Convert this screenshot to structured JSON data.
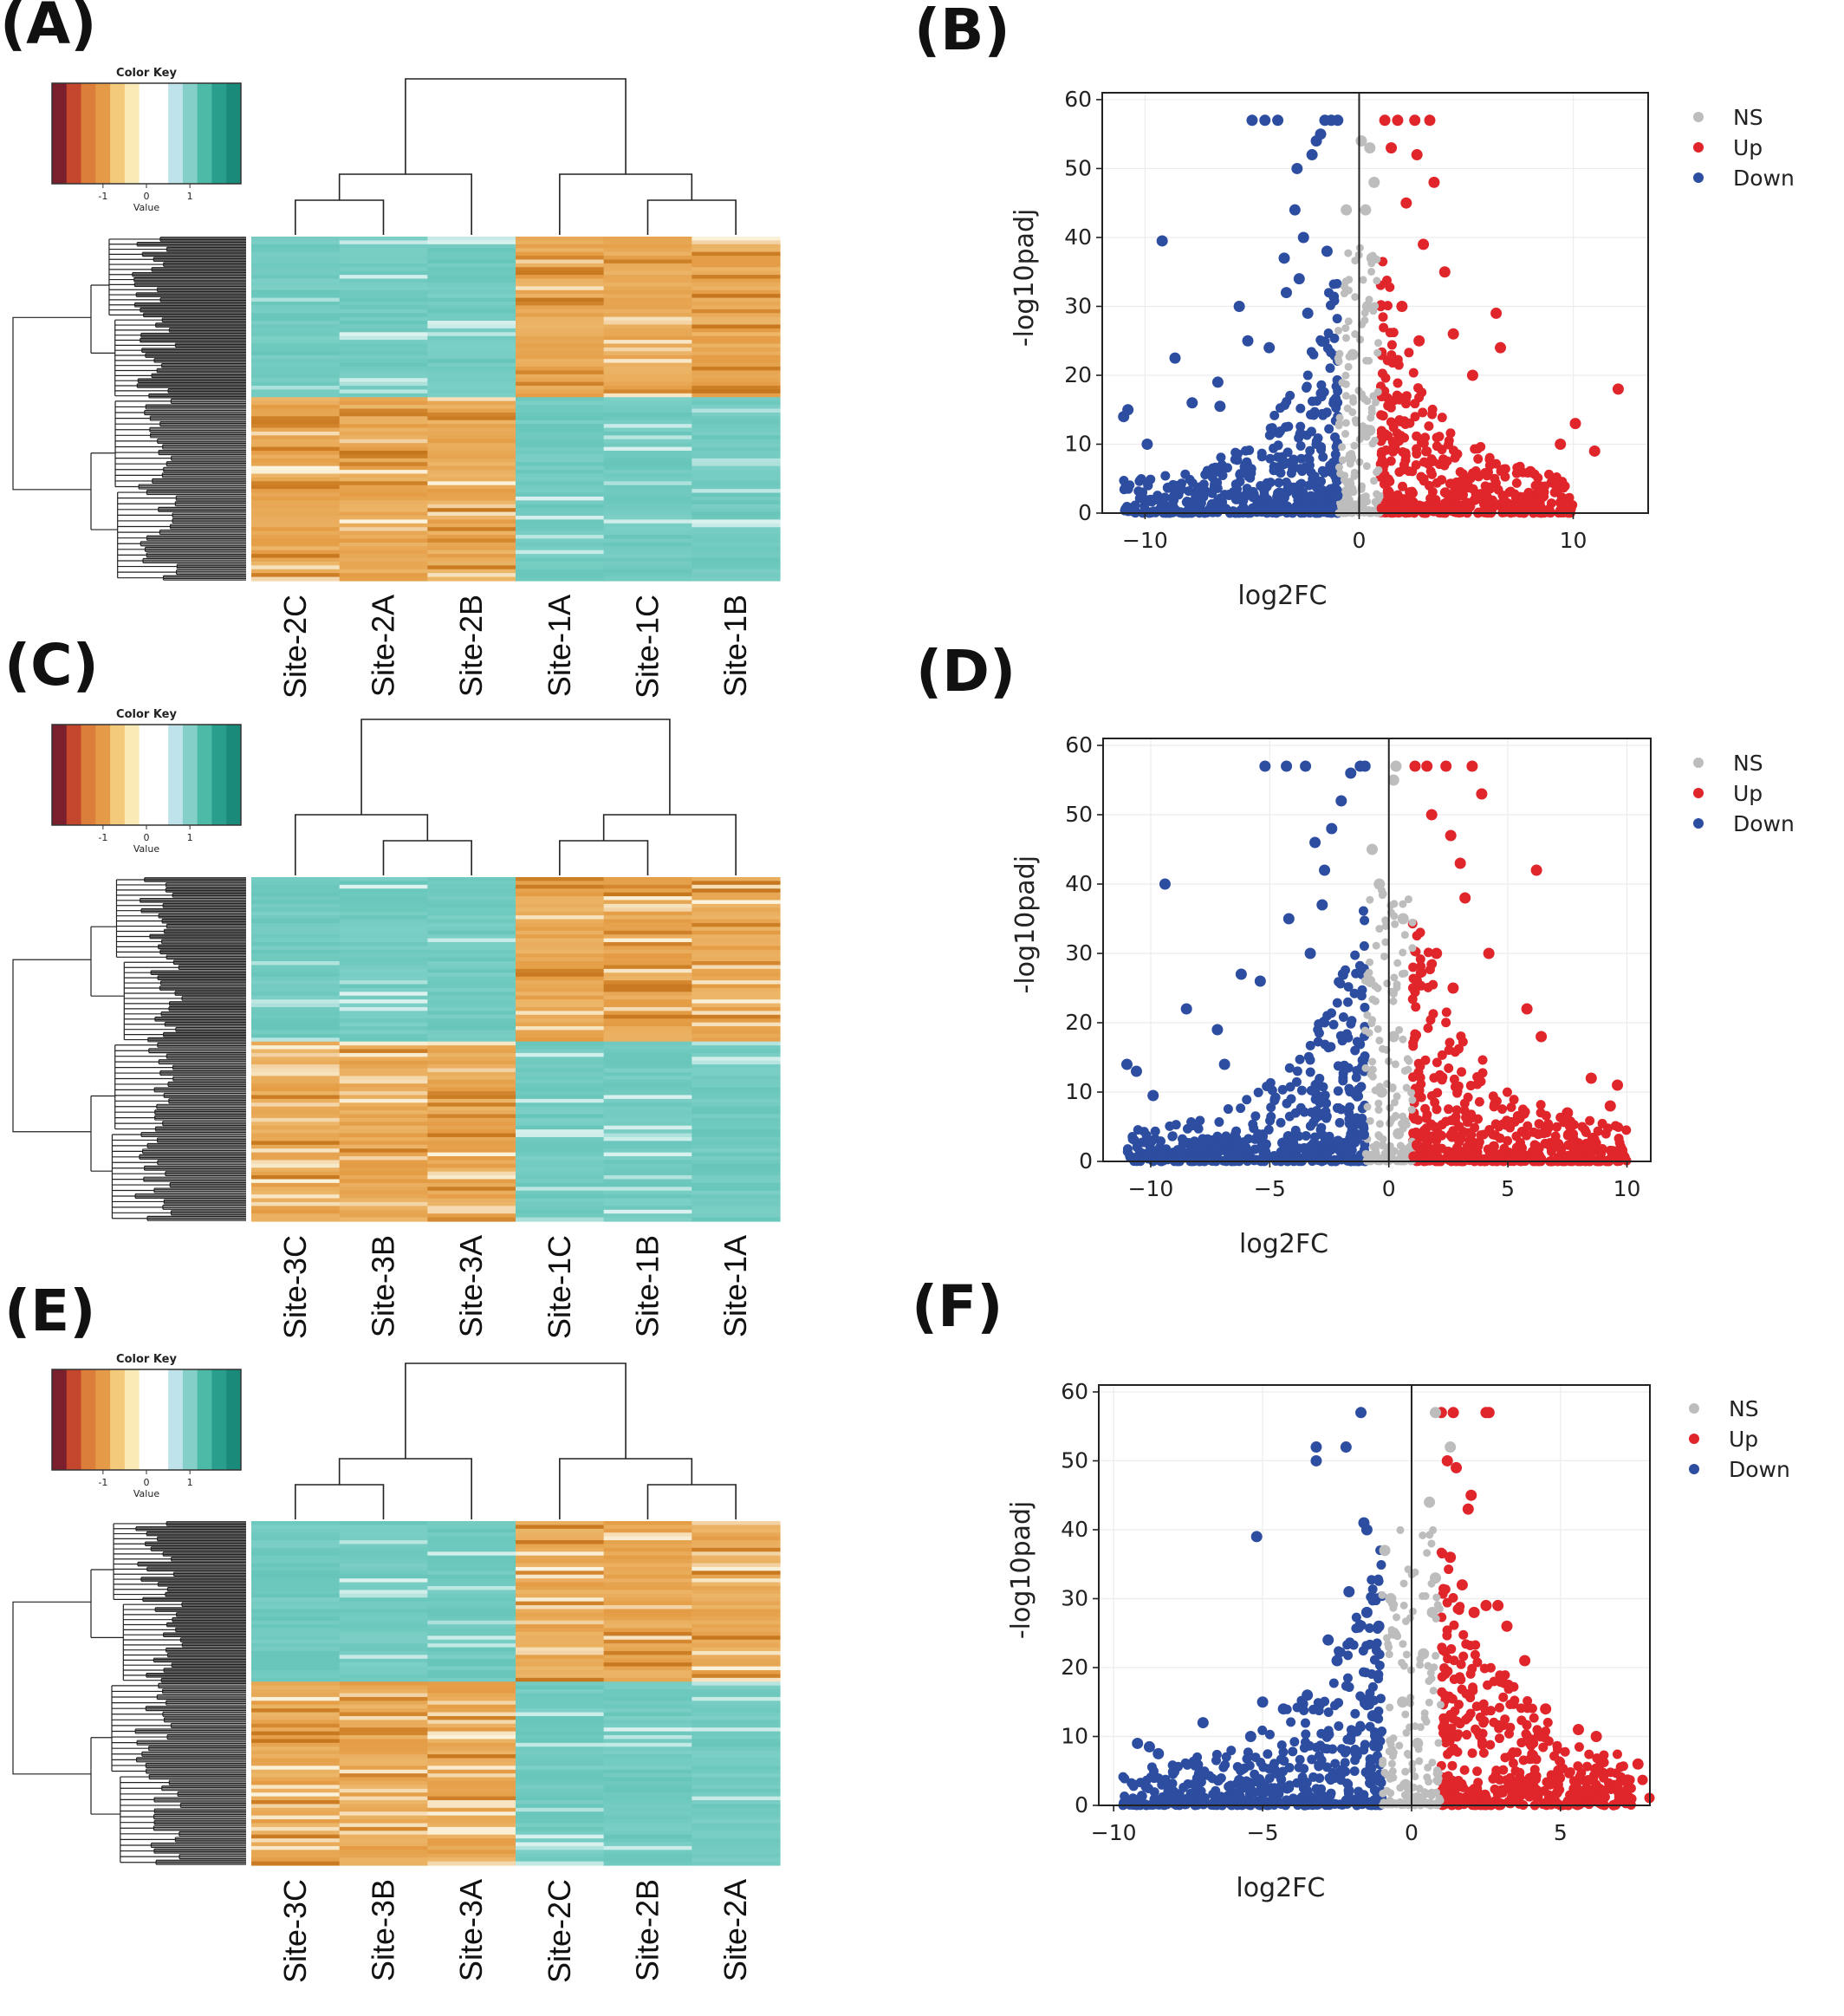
{
  "colors": {
    "up": "#e0252b",
    "down": "#2d4da0",
    "ns": "#bdbdbd",
    "heat_low": "#7ccfc6",
    "heat_mid": "#fbf3dc",
    "heat_high": "#e49b43",
    "heat_max": "#c6761d"
  },
  "color_key": {
    "title": "Color Key",
    "xlabel": "Value",
    "ticks": [
      "-1",
      "0",
      "1"
    ],
    "bands": [
      "#7a1f2b",
      "#c4462c",
      "#db7e3a",
      "#e59a48",
      "#f3c97c",
      "#faeab5",
      "#ffffff",
      "#ffffff",
      "#bfe3ea",
      "#84cfc7",
      "#4dbaa8",
      "#2a9e8c",
      "#1a8a7a"
    ]
  },
  "panels": [
    {
      "id": "A",
      "label": "(A)"
    },
    {
      "id": "B",
      "label": "(B)"
    },
    {
      "id": "C",
      "label": "(C)"
    },
    {
      "id": "D",
      "label": "(D)"
    },
    {
      "id": "E",
      "label": "(E)"
    },
    {
      "id": "F",
      "label": "(F)"
    }
  ],
  "chart_data": [
    {
      "panel": "A",
      "type": "heatmap",
      "columns": [
        "Site-2C",
        "Site-2A",
        "Site-2B",
        "Site-1A",
        "Site-1C",
        "Site-1B"
      ],
      "row_blocks": [
        {
          "fraction": 0.47,
          "pattern": [
            "low",
            "low",
            "low",
            "high",
            "high",
            "high"
          ]
        },
        {
          "fraction": 0.53,
          "pattern": [
            "high",
            "high",
            "high",
            "low",
            "low",
            "low"
          ]
        }
      ],
      "column_tree": [
        [
          0,
          1
        ],
        [
          "01",
          2
        ],
        [
          4,
          5
        ],
        [
          3,
          "45"
        ],
        [
          "012",
          "345"
        ]
      ],
      "color_key": true
    },
    {
      "panel": "B",
      "type": "scatter",
      "xlabel": "log2FC",
      "ylabel": "-log10padj",
      "xlim": [
        -12,
        13.5
      ],
      "ylim": [
        0,
        61
      ],
      "xticks": [
        -10,
        0,
        10
      ],
      "yticks": [
        0,
        10,
        20,
        30,
        40,
        50,
        60
      ],
      "legend": [
        "NS",
        "Up",
        "Down"
      ],
      "legend_position": "right",
      "grid": true,
      "series": [
        {
          "name": "Down",
          "points": [
            [
              -11,
              14
            ],
            [
              -10.8,
              15
            ],
            [
              -9.9,
              10
            ],
            [
              -9.2,
              39.5
            ],
            [
              -8.6,
              22.5
            ],
            [
              -7.8,
              16
            ],
            [
              -6.6,
              19
            ],
            [
              -6.5,
              15.5
            ],
            [
              -5.6,
              30
            ],
            [
              -5.2,
              25
            ],
            [
              -5,
              57
            ],
            [
              -4.4,
              57
            ],
            [
              -3.8,
              57
            ],
            [
              -3.5,
              37
            ],
            [
              -3,
              44
            ],
            [
              -2.9,
              50
            ],
            [
              -2.6,
              40
            ],
            [
              -2.2,
              52
            ],
            [
              -2,
              54
            ],
            [
              -1.8,
              55
            ],
            [
              -1.6,
              57
            ],
            [
              -1.3,
              57
            ],
            [
              -1,
              57
            ],
            [
              -4.2,
              24
            ],
            [
              -3.4,
              32
            ],
            [
              -2.8,
              34
            ],
            [
              -2.4,
              29
            ],
            [
              -1.5,
              38
            ]
          ]
        },
        {
          "name": "Up",
          "points": [
            [
              1.2,
              57
            ],
            [
              1.8,
              57
            ],
            [
              2.6,
              57
            ],
            [
              3.3,
              57
            ],
            [
              1.5,
              53
            ],
            [
              2.7,
              52
            ],
            [
              3.5,
              48
            ],
            [
              2.2,
              45
            ],
            [
              3,
              39
            ],
            [
              4,
              35
            ],
            [
              6.4,
              29
            ],
            [
              6.6,
              24
            ],
            [
              4.4,
              26
            ],
            [
              5.3,
              20
            ],
            [
              10.1,
              13
            ],
            [
              12.1,
              18
            ],
            [
              11,
              9
            ],
            [
              9.4,
              10
            ],
            [
              8,
              6
            ],
            [
              2,
              30
            ],
            [
              2.8,
              25
            ]
          ]
        },
        {
          "name": "NS",
          "points": [
            [
              0.1,
              54
            ],
            [
              0.5,
              53
            ],
            [
              0.7,
              48
            ],
            [
              0.3,
              44
            ],
            [
              -0.6,
              44
            ],
            [
              0.6,
              37
            ],
            [
              0.4,
              30
            ],
            [
              -0.3,
              23
            ],
            [
              0.5,
              12
            ],
            [
              -0.4,
              8
            ],
            [
              0.2,
              2
            ],
            [
              -0.2,
              1
            ]
          ]
        }
      ]
    },
    {
      "panel": "C",
      "type": "heatmap",
      "columns": [
        "Site-3C",
        "Site-3B",
        "Site-3A",
        "Site-1C",
        "Site-1B",
        "Site-1A"
      ],
      "row_blocks": [
        {
          "fraction": 0.48,
          "pattern": [
            "low",
            "low",
            "low",
            "high",
            "high",
            "high"
          ]
        },
        {
          "fraction": 0.52,
          "pattern": [
            "high",
            "high",
            "high",
            "low",
            "low",
            "low"
          ]
        }
      ],
      "column_tree": [
        [
          1,
          2
        ],
        [
          0,
          "12"
        ],
        [
          3,
          4
        ],
        [
          "34",
          5
        ],
        [
          "012",
          "345"
        ]
      ],
      "color_key": true
    },
    {
      "panel": "D",
      "type": "scatter",
      "xlabel": "log2FC",
      "ylabel": "-log10padj",
      "xlim": [
        -12,
        11
      ],
      "ylim": [
        0,
        61
      ],
      "xticks": [
        -10,
        -5,
        0,
        5,
        10
      ],
      "yticks": [
        0,
        10,
        20,
        30,
        40,
        50,
        60
      ],
      "legend": [
        "NS",
        "Up",
        "Down"
      ],
      "legend_position": "right",
      "grid": true,
      "series": [
        {
          "name": "Down",
          "points": [
            [
              -11,
              14
            ],
            [
              -10.6,
              13
            ],
            [
              -9.9,
              9.5
            ],
            [
              -9.4,
              40
            ],
            [
              -8.5,
              22
            ],
            [
              -7.2,
              19
            ],
            [
              -6.9,
              14
            ],
            [
              -6.2,
              27
            ],
            [
              -5.4,
              26
            ],
            [
              -5.2,
              57
            ],
            [
              -4.3,
              57
            ],
            [
              -3.5,
              57
            ],
            [
              -3.1,
              46
            ],
            [
              -2.7,
              42
            ],
            [
              -2.4,
              48
            ],
            [
              -2,
              52
            ],
            [
              -1.6,
              56
            ],
            [
              -1.2,
              57
            ],
            [
              -1,
              57
            ],
            [
              -4.2,
              35
            ],
            [
              -3.3,
              30
            ],
            [
              -2.8,
              37
            ]
          ]
        },
        {
          "name": "Up",
          "points": [
            [
              1.1,
              57
            ],
            [
              1.6,
              57
            ],
            [
              2.4,
              57
            ],
            [
              3.5,
              57
            ],
            [
              3.9,
              53
            ],
            [
              1.8,
              50
            ],
            [
              2.6,
              47
            ],
            [
              3,
              43
            ],
            [
              6.2,
              42
            ],
            [
              3.2,
              38
            ],
            [
              4.2,
              30
            ],
            [
              5.8,
              22
            ],
            [
              6.4,
              18
            ],
            [
              8.5,
              12
            ],
            [
              9.6,
              11
            ],
            [
              9.3,
              8
            ],
            [
              7.5,
              7
            ],
            [
              2,
              30
            ],
            [
              2.7,
              25
            ]
          ]
        },
        {
          "name": "NS",
          "points": [
            [
              0.3,
              57
            ],
            [
              0.2,
              55
            ],
            [
              -0.7,
              45
            ],
            [
              -0.4,
              40
            ],
            [
              0.6,
              35
            ],
            [
              -0.8,
              26
            ],
            [
              0.2,
              18
            ],
            [
              -0.3,
              10
            ],
            [
              0.4,
              4
            ],
            [
              -0.1,
              1
            ]
          ]
        }
      ]
    },
    {
      "panel": "E",
      "type": "heatmap",
      "columns": [
        "Site-3C",
        "Site-3B",
        "Site-3A",
        "Site-2C",
        "Site-2B",
        "Site-2A"
      ],
      "row_blocks": [
        {
          "fraction": 0.47,
          "pattern": [
            "low",
            "low",
            "low",
            "high",
            "high",
            "high"
          ]
        },
        {
          "fraction": 0.53,
          "pattern": [
            "high",
            "high",
            "high",
            "low",
            "low",
            "low"
          ]
        }
      ],
      "column_tree": [
        [
          0,
          1
        ],
        [
          "01",
          2
        ],
        [
          4,
          5
        ],
        [
          3,
          "45"
        ],
        [
          "012",
          "345"
        ]
      ],
      "color_key": true
    },
    {
      "panel": "F",
      "type": "scatter",
      "xlabel": "log2FC",
      "ylabel": "-log10padj",
      "xlim": [
        -10.5,
        8
      ],
      "ylim": [
        0,
        61
      ],
      "xticks": [
        -10,
        -5,
        0,
        5
      ],
      "yticks": [
        0,
        10,
        20,
        30,
        40,
        50,
        60
      ],
      "legend": [
        "NS",
        "Up",
        "Down"
      ],
      "legend_position": "right",
      "grid": true,
      "series": [
        {
          "name": "Down",
          "points": [
            [
              -9.2,
              9
            ],
            [
              -8.8,
              8.5
            ],
            [
              -8.5,
              7.5
            ],
            [
              -7,
              12
            ],
            [
              -5.2,
              39
            ],
            [
              -5,
              15
            ],
            [
              -5.4,
              10
            ],
            [
              -4.3,
              14
            ],
            [
              -3.2,
              52
            ],
            [
              -3.2,
              50
            ],
            [
              -2.2,
              52
            ],
            [
              -1.7,
              57
            ],
            [
              -1.6,
              41
            ],
            [
              -1.5,
              40
            ],
            [
              -2.1,
              31
            ],
            [
              -1.5,
              28
            ],
            [
              -2.8,
              24
            ],
            [
              -3.5,
              16
            ],
            [
              -2.5,
              21
            ],
            [
              -1.1,
              26
            ],
            [
              -1.3,
              13
            ]
          ]
        },
        {
          "name": "Up",
          "points": [
            [
              1,
              57
            ],
            [
              1.4,
              57
            ],
            [
              2.5,
              57
            ],
            [
              2.6,
              57
            ],
            [
              1.2,
              50
            ],
            [
              1.5,
              49
            ],
            [
              1.9,
              43
            ],
            [
              2,
              45
            ],
            [
              1.3,
              36
            ],
            [
              1.7,
              32
            ],
            [
              2.1,
              28
            ],
            [
              2.5,
              29
            ],
            [
              2.9,
              29
            ],
            [
              3.2,
              26
            ],
            [
              3.8,
              21
            ],
            [
              4.5,
              14
            ],
            [
              5.6,
              11
            ],
            [
              6.2,
              10
            ],
            [
              7.6,
              6
            ],
            [
              4,
              9
            ],
            [
              3,
              18
            ]
          ]
        },
        {
          "name": "NS",
          "points": [
            [
              0.8,
              57
            ],
            [
              1.3,
              52
            ],
            [
              0.6,
              44
            ],
            [
              -0.9,
              37
            ],
            [
              0.8,
              33
            ],
            [
              -0.7,
              30
            ],
            [
              0.7,
              28
            ],
            [
              -0.6,
              25
            ],
            [
              0.4,
              22
            ],
            [
              -0.3,
              15
            ],
            [
              0.2,
              9
            ],
            [
              -0.2,
              3
            ],
            [
              0.1,
              1
            ]
          ]
        }
      ]
    }
  ]
}
